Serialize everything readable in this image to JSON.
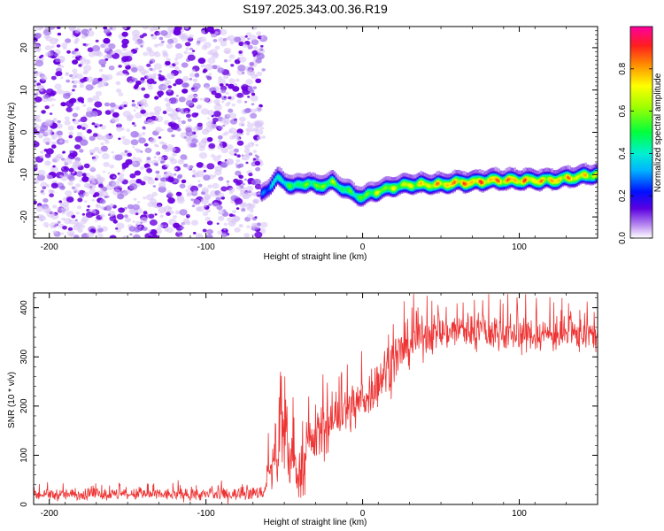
{
  "title": "S197.2025.343.00.36.R19",
  "chart_data": [
    {
      "type": "heatmap",
      "xlabel": "Height of straight line (km)",
      "ylabel": "Frequency (Hz)",
      "xlim": [
        -210,
        150
      ],
      "ylim": [
        -25,
        25
      ],
      "xticks": [
        -200,
        -100,
        0,
        100
      ],
      "xtick_labels": [
        "-200",
        "-100",
        "0",
        "100"
      ],
      "yticks": [
        -20,
        -10,
        0,
        10,
        20
      ],
      "ytick_labels": [
        "-20",
        "-10",
        "0",
        "10",
        "20"
      ],
      "noise_region_x": [
        -210,
        -65
      ],
      "signal_track": {
        "x": [
          -65,
          -60,
          -55,
          -50,
          -45,
          -40,
          -35,
          -30,
          -25,
          -20,
          -15,
          -10,
          -5,
          0,
          5,
          10,
          15,
          20,
          30,
          40,
          50,
          60,
          70,
          80,
          90,
          100,
          110,
          120,
          130,
          140,
          150
        ],
        "freq": [
          -15,
          -13,
          -11,
          -12,
          -13,
          -12.5,
          -12,
          -13,
          -12.5,
          -12,
          -13,
          -14,
          -15,
          -15.5,
          -14.5,
          -14,
          -13.5,
          -13,
          -12.5,
          -12.5,
          -12.5,
          -12,
          -12,
          -11.5,
          -11.5,
          -11.5,
          -11.5,
          -11.5,
          -11,
          -10.5,
          -10
        ],
        "amplitude": [
          0.3,
          0.4,
          0.5,
          0.55,
          0.6,
          0.6,
          0.65,
          0.65,
          0.7,
          0.7,
          0.6,
          0.6,
          0.6,
          0.65,
          0.7,
          0.75,
          0.75,
          0.75,
          0.8,
          0.85,
          0.9,
          0.95,
          0.95,
          0.95,
          0.95,
          0.95,
          0.9,
          0.9,
          0.9,
          0.85,
          0.8
        ]
      },
      "colorbar": {
        "label": "Normalized spectral amplitude",
        "range": [
          0,
          1
        ],
        "ticks": [
          0.0,
          0.2,
          0.4,
          0.6,
          0.8
        ],
        "tick_labels": [
          "0.0",
          "0.2",
          "0.4",
          "0.6",
          "0.8"
        ]
      }
    },
    {
      "type": "line",
      "xlabel": "Height of straight line (km)",
      "ylabel": "SNR (10 * v/v)",
      "xlim": [
        -210,
        150
      ],
      "ylim": [
        0,
        430
      ],
      "xticks": [
        -200,
        -100,
        0,
        100
      ],
      "xtick_labels": [
        "-200",
        "-100",
        "0",
        "100"
      ],
      "yticks": [
        0,
        100,
        200,
        300,
        400
      ],
      "ytick_labels": [
        "0",
        "100",
        "200",
        "300",
        "400"
      ],
      "color": "#ee3333",
      "series": [
        {
          "name": "SNR",
          "x": [
            -210,
            -180,
            -150,
            -120,
            -90,
            -70,
            -63,
            -60,
            -55,
            -50,
            -45,
            -40,
            -35,
            -30,
            -25,
            -20,
            -15,
            -10,
            -5,
            0,
            5,
            10,
            15,
            20,
            25,
            30,
            40,
            50,
            60,
            70,
            80,
            90,
            100,
            110,
            120,
            130,
            140,
            150
          ],
          "mean": [
            20,
            20,
            20,
            20,
            20,
            22,
            25,
            60,
            110,
            120,
            90,
            60,
            110,
            140,
            155,
            165,
            180,
            190,
            200,
            215,
            230,
            250,
            275,
            295,
            310,
            325,
            345,
            350,
            355,
            355,
            350,
            350,
            345,
            345,
            345,
            345,
            345,
            345
          ],
          "spread": [
            12,
            12,
            12,
            12,
            12,
            12,
            14,
            40,
            70,
            80,
            60,
            50,
            60,
            60,
            55,
            55,
            55,
            50,
            50,
            50,
            50,
            50,
            55,
            55,
            50,
            45,
            40,
            40,
            40,
            40,
            40,
            40,
            35,
            35,
            35,
            35,
            35,
            35
          ]
        }
      ]
    }
  ]
}
